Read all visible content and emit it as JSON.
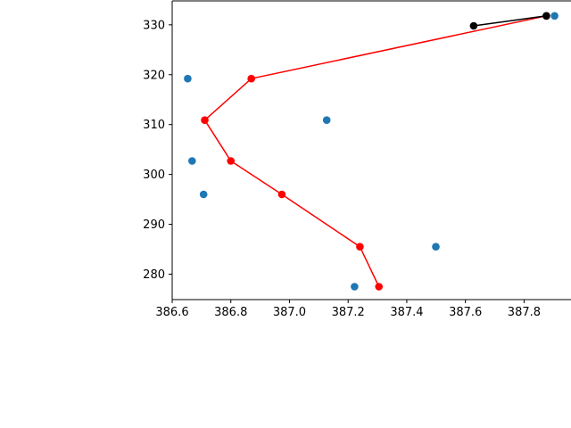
{
  "chart_data": {
    "type": "scatter",
    "title": "",
    "xlabel": "",
    "ylabel": "",
    "xlim": [
      386.6,
      387.96
    ],
    "ylim": [
      274.9,
      334.8
    ],
    "grid": false,
    "x_ticks": [
      "386.6",
      "386.8",
      "387.0",
      "387.2",
      "387.4",
      "387.6",
      "387.8"
    ],
    "x_tick_values": [
      386.6,
      386.8,
      387.0,
      387.2,
      387.4,
      387.6,
      387.8
    ],
    "y_ticks": [
      "280",
      "290",
      "300",
      "310",
      "320",
      "330"
    ],
    "y_tick_values": [
      280,
      290,
      300,
      310,
      320,
      330
    ],
    "series": [
      {
        "kind": "scatter",
        "color": "#1f77b4",
        "points": [
          {
            "x": 386.653,
            "y": 319.2
          },
          {
            "x": 386.668,
            "y": 302.7
          },
          {
            "x": 386.707,
            "y": 296.0
          },
          {
            "x": 387.127,
            "y": 310.9
          },
          {
            "x": 387.499,
            "y": 285.5
          },
          {
            "x": 387.222,
            "y": 277.5
          },
          {
            "x": 387.904,
            "y": 331.8
          }
        ]
      },
      {
        "kind": "line",
        "color": "#ff0000",
        "points": [
          {
            "x": 387.305,
            "y": 277.5
          },
          {
            "x": 387.24,
            "y": 285.5
          },
          {
            "x": 386.974,
            "y": 296.0
          },
          {
            "x": 386.8,
            "y": 302.7
          },
          {
            "x": 386.711,
            "y": 310.9
          },
          {
            "x": 386.87,
            "y": 319.2
          },
          {
            "x": 387.876,
            "y": 331.8
          }
        ]
      },
      {
        "kind": "line",
        "color": "#000000",
        "points": [
          {
            "x": 387.628,
            "y": 329.8
          },
          {
            "x": 387.876,
            "y": 331.8
          }
        ]
      }
    ]
  }
}
